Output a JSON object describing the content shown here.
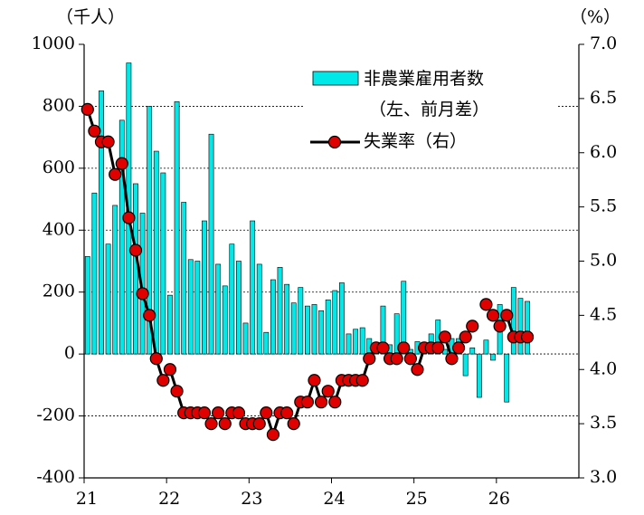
{
  "chart_data": {
    "type": "bar-line",
    "y_unit_label": "（千人）",
    "y2_unit_label": "（%）",
    "categories": [
      "21",
      null,
      null,
      null,
      null,
      null,
      null,
      null,
      null,
      null,
      null,
      null,
      "22",
      null,
      null,
      null,
      null,
      null,
      null,
      null,
      null,
      null,
      null,
      null,
      "23",
      null,
      null,
      null,
      null,
      null,
      null,
      null,
      null,
      null,
      null,
      null,
      "24",
      null,
      null,
      null,
      null,
      null,
      null,
      null,
      null,
      null,
      null,
      null,
      "25",
      null,
      null,
      null,
      null,
      null,
      null,
      null,
      null,
      null,
      null,
      null,
      "26",
      null,
      null,
      null,
      null,
      null,
      null,
      null,
      null,
      null,
      null,
      null
    ],
    "series": [
      {
        "name": "非農業雇用者数",
        "name_note": "（左、前月差）",
        "type": "bar",
        "color": "#00e8e8",
        "axis": "y",
        "values": [
          315,
          520,
          850,
          355,
          480,
          755,
          940,
          550,
          455,
          800,
          655,
          585,
          190,
          815,
          490,
          305,
          300,
          430,
          710,
          290,
          220,
          355,
          300,
          100,
          430,
          290,
          70,
          240,
          280,
          225,
          165,
          215,
          155,
          160,
          140,
          175,
          205,
          230,
          65,
          80,
          85,
          50,
          30,
          155,
          30,
          130,
          235,
          15,
          40,
          30,
          65,
          110,
          15,
          50,
          50,
          -70,
          20,
          -140,
          45,
          -20,
          160,
          -155,
          215,
          180,
          170,
          null,
          null,
          null,
          null,
          null,
          null,
          null
        ]
      },
      {
        "name": "失業率（右）",
        "type": "line",
        "color": "#000000",
        "marker_color": "#e00000",
        "axis": "y2",
        "values": [
          6.4,
          6.2,
          6.1,
          6.1,
          5.8,
          5.9,
          5.4,
          5.1,
          4.7,
          4.5,
          4.1,
          3.9,
          4.0,
          3.8,
          3.6,
          3.6,
          3.6,
          3.6,
          3.5,
          3.6,
          3.5,
          3.6,
          3.6,
          3.5,
          3.5,
          3.5,
          3.6,
          3.4,
          3.6,
          3.6,
          3.5,
          3.7,
          3.7,
          3.9,
          3.7,
          3.8,
          3.7,
          3.9,
          3.9,
          3.9,
          3.9,
          4.1,
          4.2,
          4.2,
          4.1,
          4.1,
          4.2,
          4.1,
          4.0,
          4.2,
          4.2,
          4.2,
          4.3,
          4.1,
          4.2,
          4.3,
          4.4,
          null,
          4.6,
          4.5,
          4.4,
          4.5,
          4.3,
          4.3,
          4.3,
          null,
          null,
          null,
          null,
          null,
          null,
          null
        ]
      }
    ],
    "ylim": [
      -400,
      1000
    ],
    "yticks": [
      -400,
      -200,
      0,
      200,
      400,
      600,
      800,
      1000
    ],
    "y2lim": [
      3,
      7
    ],
    "y2ticks": [
      {
        "value": 3,
        "label": "3.0"
      },
      {
        "value": 3.5,
        "label": "3.5"
      },
      {
        "value": 4,
        "label": "4.0"
      },
      {
        "value": 4.5,
        "label": "4.5"
      },
      {
        "value": 5,
        "label": "5.0"
      },
      {
        "value": 5.5,
        "label": "5.5"
      },
      {
        "value": 6,
        "label": "6.0"
      },
      {
        "value": 6.5,
        "label": "6.5"
      },
      {
        "value": 7,
        "label": "7.0"
      }
    ],
    "grid": true
  }
}
